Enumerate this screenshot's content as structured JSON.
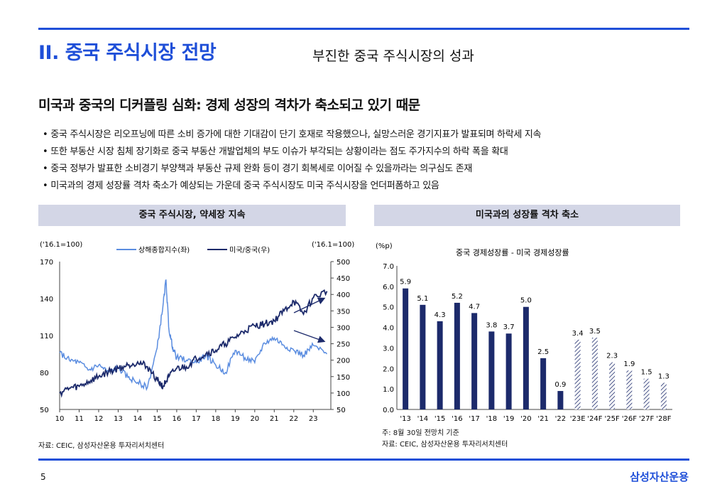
{
  "header": {
    "section_title": "II. 중국 주식시장 전망",
    "sub_title": "부진한 중국 주식시장의 성과"
  },
  "headline": "미국과 중국의 디커플링 심화: 경제 성장의 격차가 축소되고 있기 때문",
  "bullets": [
    "중국 주식시장은 리오프닝에 따른 소비 증가에 대한 기대감이 단기 호재로 작용했으나, 실망스러운 경기지표가 발표되며 하락세 지속",
    "또한 부동산 시장 침체 장기화로 중국 부동산 개발업체의 부도 이슈가 부각되는 상황이라는 점도 주가지수의 하락 폭을 확대",
    "중국 정부가 발표한 소비경기 부양책과 부동산 규제 완화 등이 경기 회복세로 이어질 수 있을까라는 의구심도 존재",
    "미국과의 경제 성장률 격차 축소가 예상되는 가운데 중국 주식시장도 미국 주식시장을 언더퍼폼하고 있음"
  ],
  "left_panel": {
    "title": "중국 주식시장, 약세장 지속",
    "source": "자료: CEIC, 삼성자산운용 투자리서치센터"
  },
  "right_panel": {
    "title": "미국과의 성장률 격차 축소",
    "note": "주: 8월 30일 전망치 기준",
    "source": "자료: CEIC, 삼성자산운용 투자리서치센터"
  },
  "chart_data": [
    {
      "type": "line",
      "left_axis_label": "('16.1=100)",
      "right_axis_label": "('16.1=100)",
      "x_ticks": [
        "10",
        "11",
        "12",
        "13",
        "14",
        "15",
        "16",
        "17",
        "18",
        "19",
        "20",
        "21",
        "22",
        "23"
      ],
      "y_left_ticks": [
        "50",
        "80",
        "110",
        "140",
        "170"
      ],
      "y_right_ticks": [
        "50",
        "100",
        "150",
        "200",
        "250",
        "300",
        "350",
        "400",
        "450",
        "500"
      ],
      "ylim_left": [
        50,
        170
      ],
      "ylim_right": [
        50,
        500
      ],
      "series": [
        {
          "name": "상해종합지수(좌)",
          "axis": "left",
          "color": "#5b8de0",
          "x": [
            10,
            10.5,
            11,
            11.5,
            12,
            12.5,
            13,
            13.5,
            14,
            14.5,
            15,
            15.3,
            15.45,
            15.6,
            15.8,
            16,
            16.5,
            17,
            17.5,
            18,
            18.5,
            19,
            19.5,
            20,
            20.5,
            21,
            21.5,
            22,
            22.5,
            23,
            23.7
          ],
          "y": [
            96,
            90,
            88,
            82,
            86,
            80,
            84,
            76,
            72,
            68,
            100,
            135,
            155,
            115,
            100,
            92,
            90,
            88,
            94,
            86,
            80,
            98,
            92,
            88,
            104,
            108,
            102,
            98,
            94,
            102,
            95
          ]
        },
        {
          "name": "미국/중국(우)",
          "axis": "right",
          "color": "#1c2a6b",
          "x": [
            10,
            10.5,
            11,
            11.5,
            12,
            12.5,
            13,
            13.5,
            14,
            14.5,
            15,
            15.3,
            15.6,
            16,
            16.5,
            17,
            17.5,
            18,
            18.5,
            19,
            19.5,
            20,
            20.5,
            21,
            21.5,
            22,
            22.5,
            23,
            23.7
          ],
          "y": [
            100,
            115,
            120,
            135,
            150,
            165,
            175,
            185,
            195,
            180,
            140,
            120,
            150,
            175,
            180,
            205,
            220,
            230,
            250,
            270,
            290,
            305,
            310,
            320,
            350,
            380,
            340,
            390,
            410
          ]
        }
      ]
    },
    {
      "type": "bar",
      "title": "중국 경제성장률 - 미국 경제성장률",
      "ylabel": "(%p)",
      "ylim": [
        0,
        7
      ],
      "y_ticks": [
        "0.0",
        "1.0",
        "2.0",
        "3.0",
        "4.0",
        "5.0",
        "6.0",
        "7.0"
      ],
      "categories": [
        "'13",
        "'14",
        "'15",
        "'16",
        "'17",
        "'18",
        "'19",
        "'20",
        "'21",
        "'22",
        "'23E",
        "'24F",
        "'25F",
        "'26F",
        "'27F",
        "'28F"
      ],
      "values": [
        5.9,
        5.1,
        4.3,
        5.2,
        4.7,
        3.8,
        3.7,
        5.0,
        2.5,
        0.9,
        3.4,
        3.5,
        2.3,
        1.9,
        1.5,
        1.3
      ],
      "value_labels": [
        "5.9",
        "5.1",
        "4.3",
        "5.2",
        "4.7",
        "3.8",
        "3.7",
        "5.0",
        "2.5",
        "0.9",
        "3.4",
        "3.5",
        "2.3",
        "1.9",
        "1.5",
        "1.3"
      ],
      "forecast_from_index": 10,
      "color": "#1c2a6b"
    }
  ],
  "footer": {
    "page": "5",
    "brand": "삼성자산운용"
  }
}
